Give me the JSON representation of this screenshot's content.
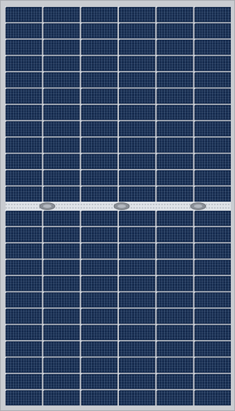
{
  "panel": {
    "cell_columns": 6,
    "rows_per_half": 12,
    "busbars_per_cell": 5,
    "junction_boxes": 3,
    "colors": {
      "frame": "#c9ccd1",
      "frame_edge": "#a8abb0",
      "cell": "#13284b",
      "cell_dark": "#0e1f3c",
      "finger_line": "#5a7ba3",
      "busbar": "#c8d2de",
      "gap": "#dfe3e8",
      "junction_box": "#8a8f96"
    }
  }
}
